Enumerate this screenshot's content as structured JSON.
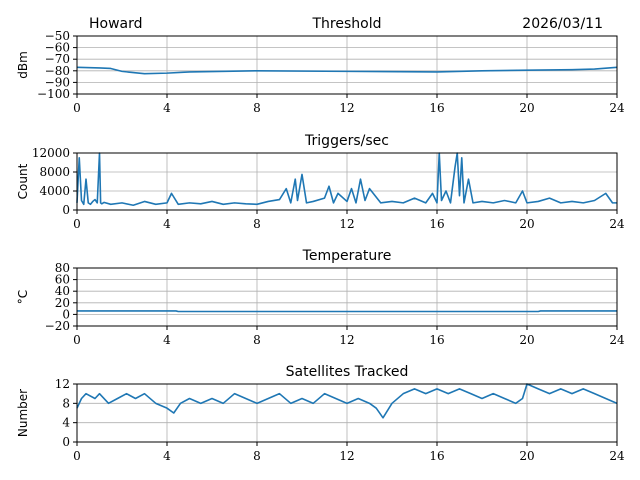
{
  "header": {
    "station": "Howard",
    "date": "2026/03/11"
  },
  "colors": {
    "series": "#1f77b4",
    "grid": "#b0b0b0",
    "axis": "#000000"
  },
  "chart_data": [
    {
      "id": "threshold",
      "type": "line",
      "title": "Threshold",
      "ylabel": "dBm",
      "xlabel": "",
      "xlim": [
        0,
        24
      ],
      "ylim": [
        -100,
        -50
      ],
      "xticks": [
        0,
        4,
        8,
        12,
        16,
        20,
        24
      ],
      "yticks": [
        -100,
        -90,
        -80,
        -70,
        -60,
        -50
      ],
      "ytick_labels": [
        "−100",
        "−90",
        "−80",
        "−70",
        "−60",
        "−50"
      ],
      "grid": true,
      "series": [
        {
          "name": "Threshold",
          "x": [
            0,
            1,
            1.5,
            2,
            2.5,
            3,
            4,
            5,
            8,
            12,
            16,
            18,
            20,
            22,
            23,
            24
          ],
          "y": [
            -77,
            -77.5,
            -78,
            -80.5,
            -81.5,
            -82.5,
            -82,
            -81,
            -80,
            -80.5,
            -81,
            -80,
            -79.5,
            -79,
            -78.5,
            -77
          ]
        }
      ]
    },
    {
      "id": "triggers",
      "type": "line",
      "title": "Triggers/sec",
      "ylabel": "Count",
      "xlabel": "",
      "xlim": [
        0,
        24
      ],
      "ylim": [
        0,
        12000
      ],
      "xticks": [
        0,
        4,
        8,
        12,
        16,
        20,
        24
      ],
      "yticks": [
        0,
        4000,
        8000,
        12000
      ],
      "grid": true,
      "series": [
        {
          "name": "Triggers/sec",
          "x": [
            0,
            0.1,
            0.2,
            0.3,
            0.4,
            0.5,
            0.6,
            0.7,
            0.8,
            0.9,
            1.0,
            1.05,
            1.1,
            1.2,
            1.5,
            2.0,
            2.5,
            3.0,
            3.5,
            4.0,
            4.2,
            4.5,
            5.0,
            5.5,
            6.0,
            6.5,
            7.0,
            7.5,
            8.0,
            8.5,
            9.0,
            9.3,
            9.5,
            9.7,
            9.8,
            10.0,
            10.2,
            10.5,
            11.0,
            11.2,
            11.4,
            11.6,
            12.0,
            12.2,
            12.4,
            12.6,
            12.8,
            13.0,
            13.5,
            14.0,
            14.5,
            15.0,
            15.5,
            15.8,
            16.0,
            16.1,
            16.2,
            16.4,
            16.6,
            16.8,
            16.9,
            17.0,
            17.1,
            17.2,
            17.4,
            17.6,
            18.0,
            18.5,
            19.0,
            19.5,
            19.8,
            20.0,
            20.5,
            21.0,
            21.5,
            22.0,
            22.5,
            23.0,
            23.5,
            23.8,
            24.0
          ],
          "y": [
            1500,
            11000,
            2000,
            1200,
            6500,
            1500,
            1200,
            1800,
            2200,
            1500,
            12000,
            1500,
            1300,
            1600,
            1200,
            1500,
            1000,
            1800,
            1200,
            1500,
            3500,
            1200,
            1500,
            1300,
            1800,
            1200,
            1500,
            1300,
            1200,
            1800,
            2200,
            4500,
            1500,
            6500,
            2000,
            7500,
            1500,
            1800,
            2500,
            5000,
            1500,
            3500,
            1800,
            4500,
            1500,
            6500,
            2000,
            4500,
            1500,
            1800,
            1500,
            2500,
            1500,
            3500,
            1500,
            12000,
            2000,
            4000,
            1500,
            9000,
            12000,
            3000,
            11000,
            1500,
            6500,
            1500,
            1800,
            1500,
            2000,
            1500,
            4000,
            1500,
            1800,
            2500,
            1500,
            1800,
            1500,
            2000,
            3500,
            1500,
            1500
          ]
        }
      ]
    },
    {
      "id": "temperature",
      "type": "line",
      "title": "Temperature",
      "ylabel": "°C",
      "xlabel": "",
      "xlim": [
        0,
        24
      ],
      "ylim": [
        -20,
        80
      ],
      "xticks": [
        0,
        4,
        8,
        12,
        16,
        20,
        24
      ],
      "yticks": [
        -20,
        0,
        20,
        40,
        60,
        80
      ],
      "ytick_labels": [
        "−20",
        "0",
        "20",
        "40",
        "60",
        "80"
      ],
      "grid": true,
      "series": [
        {
          "name": "Temperature",
          "x": [
            0,
            4.4,
            4.5,
            20.5,
            20.6,
            24
          ],
          "y": [
            6,
            6,
            5,
            5,
            6,
            6
          ]
        }
      ]
    },
    {
      "id": "satellites",
      "type": "line",
      "title": "Satellites Tracked",
      "ylabel": "Number",
      "xlabel": "",
      "xlim": [
        0,
        24
      ],
      "ylim": [
        0,
        12
      ],
      "xticks": [
        0,
        4,
        8,
        12,
        16,
        20,
        24
      ],
      "yticks": [
        0,
        4,
        8,
        12
      ],
      "grid": true,
      "series": [
        {
          "name": "Satellites",
          "x": [
            0,
            0.2,
            0.4,
            0.8,
            1.0,
            1.4,
            1.8,
            2.2,
            2.6,
            3.0,
            3.5,
            4.0,
            4.3,
            4.6,
            5.0,
            5.5,
            6.0,
            6.5,
            7.0,
            7.5,
            8.0,
            8.5,
            9.0,
            9.5,
            10.0,
            10.5,
            11.0,
            11.5,
            12.0,
            12.5,
            13.0,
            13.3,
            13.6,
            14.0,
            14.5,
            15.0,
            15.5,
            16.0,
            16.5,
            17.0,
            17.5,
            18.0,
            18.5,
            19.0,
            19.5,
            19.8,
            20.0,
            20.5,
            21.0,
            21.5,
            22.0,
            22.5,
            23.0,
            23.5,
            24.0
          ],
          "y": [
            7,
            9,
            10,
            9,
            10,
            8,
            9,
            10,
            9,
            10,
            8,
            7,
            6,
            8,
            9,
            8,
            9,
            8,
            10,
            9,
            8,
            9,
            10,
            8,
            9,
            8,
            10,
            9,
            8,
            9,
            8,
            7,
            5,
            8,
            10,
            11,
            10,
            11,
            10,
            11,
            10,
            9,
            10,
            9,
            8,
            9,
            12,
            11,
            10,
            11,
            10,
            11,
            10,
            9,
            8
          ]
        }
      ]
    }
  ]
}
